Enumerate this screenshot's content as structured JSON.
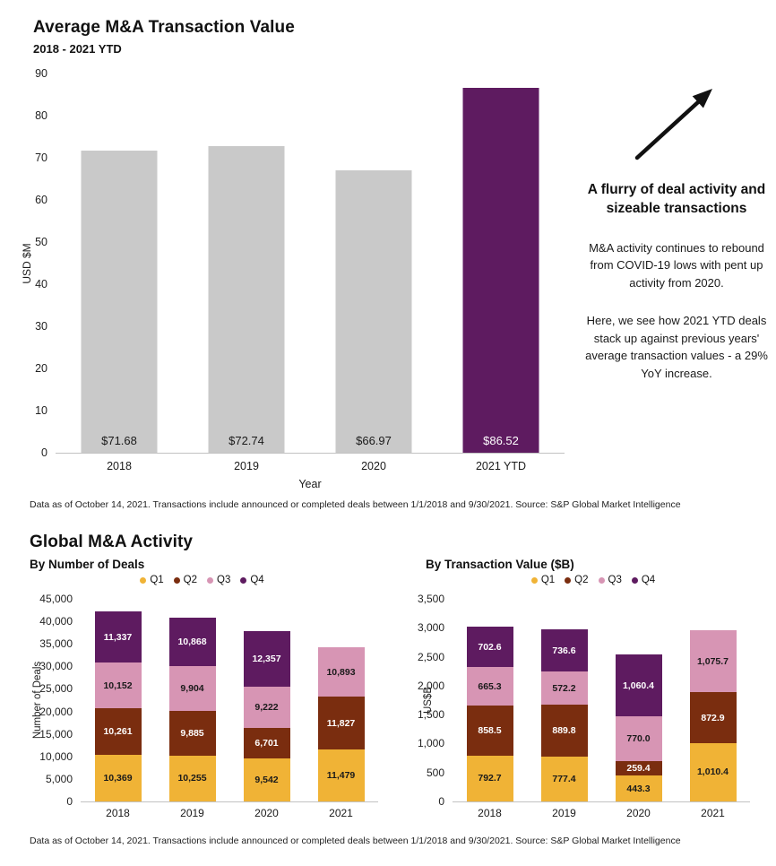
{
  "top_section": {
    "title": "Average M&A Transaction Value",
    "subtitle": "2018 - 2021 YTD",
    "footnote": "Data as of October 14, 2021. Transactions include announced or completed deals between 1/1/2018 and 9/30/2021. Source: S&P Global Market Intelligence",
    "callout": {
      "arrow_icon": "up-right-arrow",
      "heading": "A flurry of deal activity  and sizeable transactions",
      "para1": "M&A activity continues to rebound from COVID-19 lows with pent up activity from 2020.",
      "para2": "Here, we see how 2021 YTD deals stack up against previous years' average transaction values - a 29% YoY increase."
    }
  },
  "bottom_section": {
    "title": "Global M&A Activity",
    "footnote": "Data as of October 14, 2021. Transactions include announced or completed deals between 1/1/2018 and 9/30/2021. Source: S&P Global Market Intelligence"
  },
  "colors": {
    "bar_gray": "#c9c9c9",
    "accent_purple": "#5e1b60",
    "q1_amber": "#f0b336",
    "q2_brown": "#7a2d0f",
    "q3_pink": "#d795b4",
    "q4_purple": "#5e1b60",
    "arrow_black": "#111111"
  },
  "chart_data": [
    {
      "id": "avg_transaction_value",
      "type": "bar",
      "title": "Average M&A Transaction Value",
      "subtitle": "2018 - 2021 YTD",
      "xlabel": "Year",
      "ylabel": "USD $M",
      "ylim": [
        0,
        90
      ],
      "ytick_labels": [
        "90",
        "80",
        "70",
        "60",
        "50",
        "40",
        "30",
        "20",
        "10",
        "0"
      ],
      "grid": false,
      "legend_position": "none",
      "categories": [
        "2018",
        "2019",
        "2020",
        "2021 YTD"
      ],
      "values": [
        71.68,
        72.74,
        66.97,
        86.52
      ],
      "value_labels": [
        "$71.68",
        "$72.74",
        "$66.97",
        "$86.52"
      ],
      "bar_colors": [
        "#c9c9c9",
        "#c9c9c9",
        "#c9c9c9",
        "#5e1b60"
      ],
      "value_label_colors": [
        "#1a1a1a",
        "#1a1a1a",
        "#1a1a1a",
        "#ffffff"
      ]
    },
    {
      "id": "deals_by_number",
      "type": "stacked-bar",
      "title": "By Number of Deals",
      "ylabel": "Number of Deals",
      "ylim": [
        0,
        45000
      ],
      "ytick_labels": [
        "45,000",
        "40,000",
        "35,000",
        "30,000",
        "25,000",
        "20,000",
        "15,000",
        "10,000",
        "5,000",
        "0"
      ],
      "grid": false,
      "legend": [
        "Q1",
        "Q2",
        "Q3",
        "Q4"
      ],
      "legend_position": "top-center",
      "categories": [
        "2018",
        "2019",
        "2020",
        "2021"
      ],
      "series": [
        {
          "name": "Q1",
          "color": "#f0b336",
          "label_color": "#1a1a1a",
          "values": [
            10369,
            10255,
            9542,
            11479
          ],
          "labels": [
            "10,369",
            "10,255",
            "9,542",
            "11,479"
          ]
        },
        {
          "name": "Q2",
          "color": "#7a2d0f",
          "label_color": "#ffffff",
          "values": [
            10261,
            9885,
            6701,
            11827
          ],
          "labels": [
            "10,261",
            "9,885",
            "6,701",
            "11,827"
          ]
        },
        {
          "name": "Q3",
          "color": "#d795b4",
          "label_color": "#1a1a1a",
          "values": [
            10152,
            9904,
            9222,
            10893
          ],
          "labels": [
            "10,152",
            "9,904",
            "9,222",
            "10,893"
          ]
        },
        {
          "name": "Q4",
          "color": "#5e1b60",
          "label_color": "#ffffff",
          "values": [
            11337,
            10868,
            12357,
            null
          ],
          "labels": [
            "11,337",
            "10,868",
            "12,357",
            ""
          ]
        }
      ]
    },
    {
      "id": "deals_by_value",
      "type": "stacked-bar",
      "title": "By Transaction Value ($B)",
      "ylabel": "US$B",
      "ylim": [
        0,
        3500
      ],
      "ytick_labels": [
        "3,500",
        "3,000",
        "2,500",
        "2,000",
        "1,500",
        "1,000",
        "500",
        "0"
      ],
      "grid": false,
      "legend": [
        "Q1",
        "Q2",
        "Q3",
        "Q4"
      ],
      "legend_position": "top-center",
      "categories": [
        "2018",
        "2019",
        "2020",
        "2021"
      ],
      "series": [
        {
          "name": "Q1",
          "color": "#f0b336",
          "label_color": "#1a1a1a",
          "values": [
            792.7,
            777.4,
            443.3,
            1010.4
          ],
          "labels": [
            "792.7",
            "777.4",
            "443.3",
            "1,010.4"
          ]
        },
        {
          "name": "Q2",
          "color": "#7a2d0f",
          "label_color": "#ffffff",
          "values": [
            858.5,
            889.8,
            259.4,
            872.9
          ],
          "labels": [
            "858.5",
            "889.8",
            "259.4",
            "872.9"
          ]
        },
        {
          "name": "Q3",
          "color": "#d795b4",
          "label_color": "#1a1a1a",
          "values": [
            665.3,
            572.2,
            770.0,
            1075.7
          ],
          "labels": [
            "665.3",
            "572.2",
            "770.0",
            "1,075.7"
          ]
        },
        {
          "name": "Q4",
          "color": "#5e1b60",
          "label_color": "#ffffff",
          "values": [
            702.6,
            736.6,
            1060.4,
            null
          ],
          "labels": [
            "702.6",
            "736.6",
            "1,060.4",
            ""
          ]
        }
      ]
    }
  ]
}
